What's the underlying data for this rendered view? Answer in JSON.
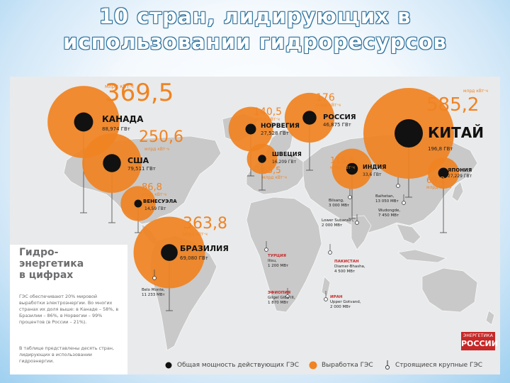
{
  "title": {
    "line1": "10 стран, лидирующих в",
    "line2": "использовании гидроресурсов"
  },
  "colors": {
    "production": "#f08322",
    "capacity": "#111111",
    "map_land": "#c9c9c9",
    "map_bg": "#e9eaeb",
    "text_gray": "#6d6e70"
  },
  "countries": [
    {
      "name": "КАНАДА",
      "production_value": "369,5",
      "production_unit": "млрд кВт·ч",
      "capacity": "88,974 ГВт"
    },
    {
      "name": "США",
      "production_value": "250,6",
      "production_unit": "млрд кВт·ч",
      "capacity": "79,511 ГВт"
    },
    {
      "name": "ВЕНЕСУЭЛА",
      "production_value": "86,8",
      "production_unit": "млрд кВт·ч",
      "capacity": "14,59 ГВт"
    },
    {
      "name": "БРАЗИЛИЯ",
      "production_value": "363,8",
      "production_unit": "млрд кВт·ч",
      "capacity": "69,080 ГВт"
    },
    {
      "name": "НОРВЕГИЯ",
      "production_value": "140,5",
      "production_unit": "млрд кВт·ч",
      "capacity": "27,528 ГВт"
    },
    {
      "name": "ШВЕЦИЯ",
      "production_value": "65,5",
      "production_unit": "млрд кВт·ч",
      "capacity": "16,209 ГВт"
    },
    {
      "name": "РОССИЯ",
      "production_value": "176",
      "production_unit": "млрд кВт·ч",
      "capacity": "46,875 ГВт"
    },
    {
      "name": "ИНДИЯ",
      "production_value": "115,6",
      "production_unit": "млрд кВт·ч",
      "capacity": "33,6 ГВт"
    },
    {
      "name": "КИТАЙ",
      "production_value": "585,2",
      "production_unit": "млрд кВт·ч",
      "capacity": "196,8 ГВт"
    },
    {
      "name": "ЯПОНИЯ",
      "production_value": "69,2",
      "production_unit": "млрд кВт·ч",
      "capacity": "27,229 ГВт"
    }
  ],
  "projects": [
    {
      "region": "",
      "name": "Baihetan,",
      "capacity": "13 050 МВт"
    },
    {
      "region": "",
      "name": "Wudongde,",
      "capacity": "7 450 МВт"
    },
    {
      "region": "",
      "name": "Bilsang,",
      "capacity": "3 000 МВт"
    },
    {
      "region": "",
      "name": "Lower Subansiri,",
      "capacity": "2 000 МВт"
    },
    {
      "region": "ТУРЦИЯ",
      "name": "Ilisu,",
      "capacity": "1 200 МВт"
    },
    {
      "region": "ПАКИСТАН",
      "name": "Diamer-Bhasha,",
      "capacity": "4 500 МВт"
    },
    {
      "region": "ИРАН",
      "name": "Upper Gotvand,",
      "capacity": "2 000 МВт"
    },
    {
      "region": "ЭФИОПИЯ",
      "name": "Gilgel Gibe III,",
      "capacity": "1 870 МВт"
    },
    {
      "region": "",
      "name": "Belo Monte,",
      "capacity": "11 233 МВт"
    }
  ],
  "info": {
    "heading": "Гидро-\nэнергетика\nв цифрах",
    "paragraph1": "ГЭС обеспечивают 20% мировой выработки электроэнергии. Во многих странах их доля выше: в Канаде – 58%, в Бразилии – 86%, в Норвегии – 99% процентов (в России – 21%).",
    "paragraph2": "В таблице представлены десять стран, лидирующих в использовании гидроэнергии."
  },
  "legend": {
    "capacity": "Общая мощность действующих ГЭС",
    "production": "Выработка ГЭС",
    "projects": "Строящиеся крупные ГЭС"
  },
  "logo": {
    "line1": "ЭНЕРГЕТИКА",
    "line2": "РОССИИ"
  }
}
